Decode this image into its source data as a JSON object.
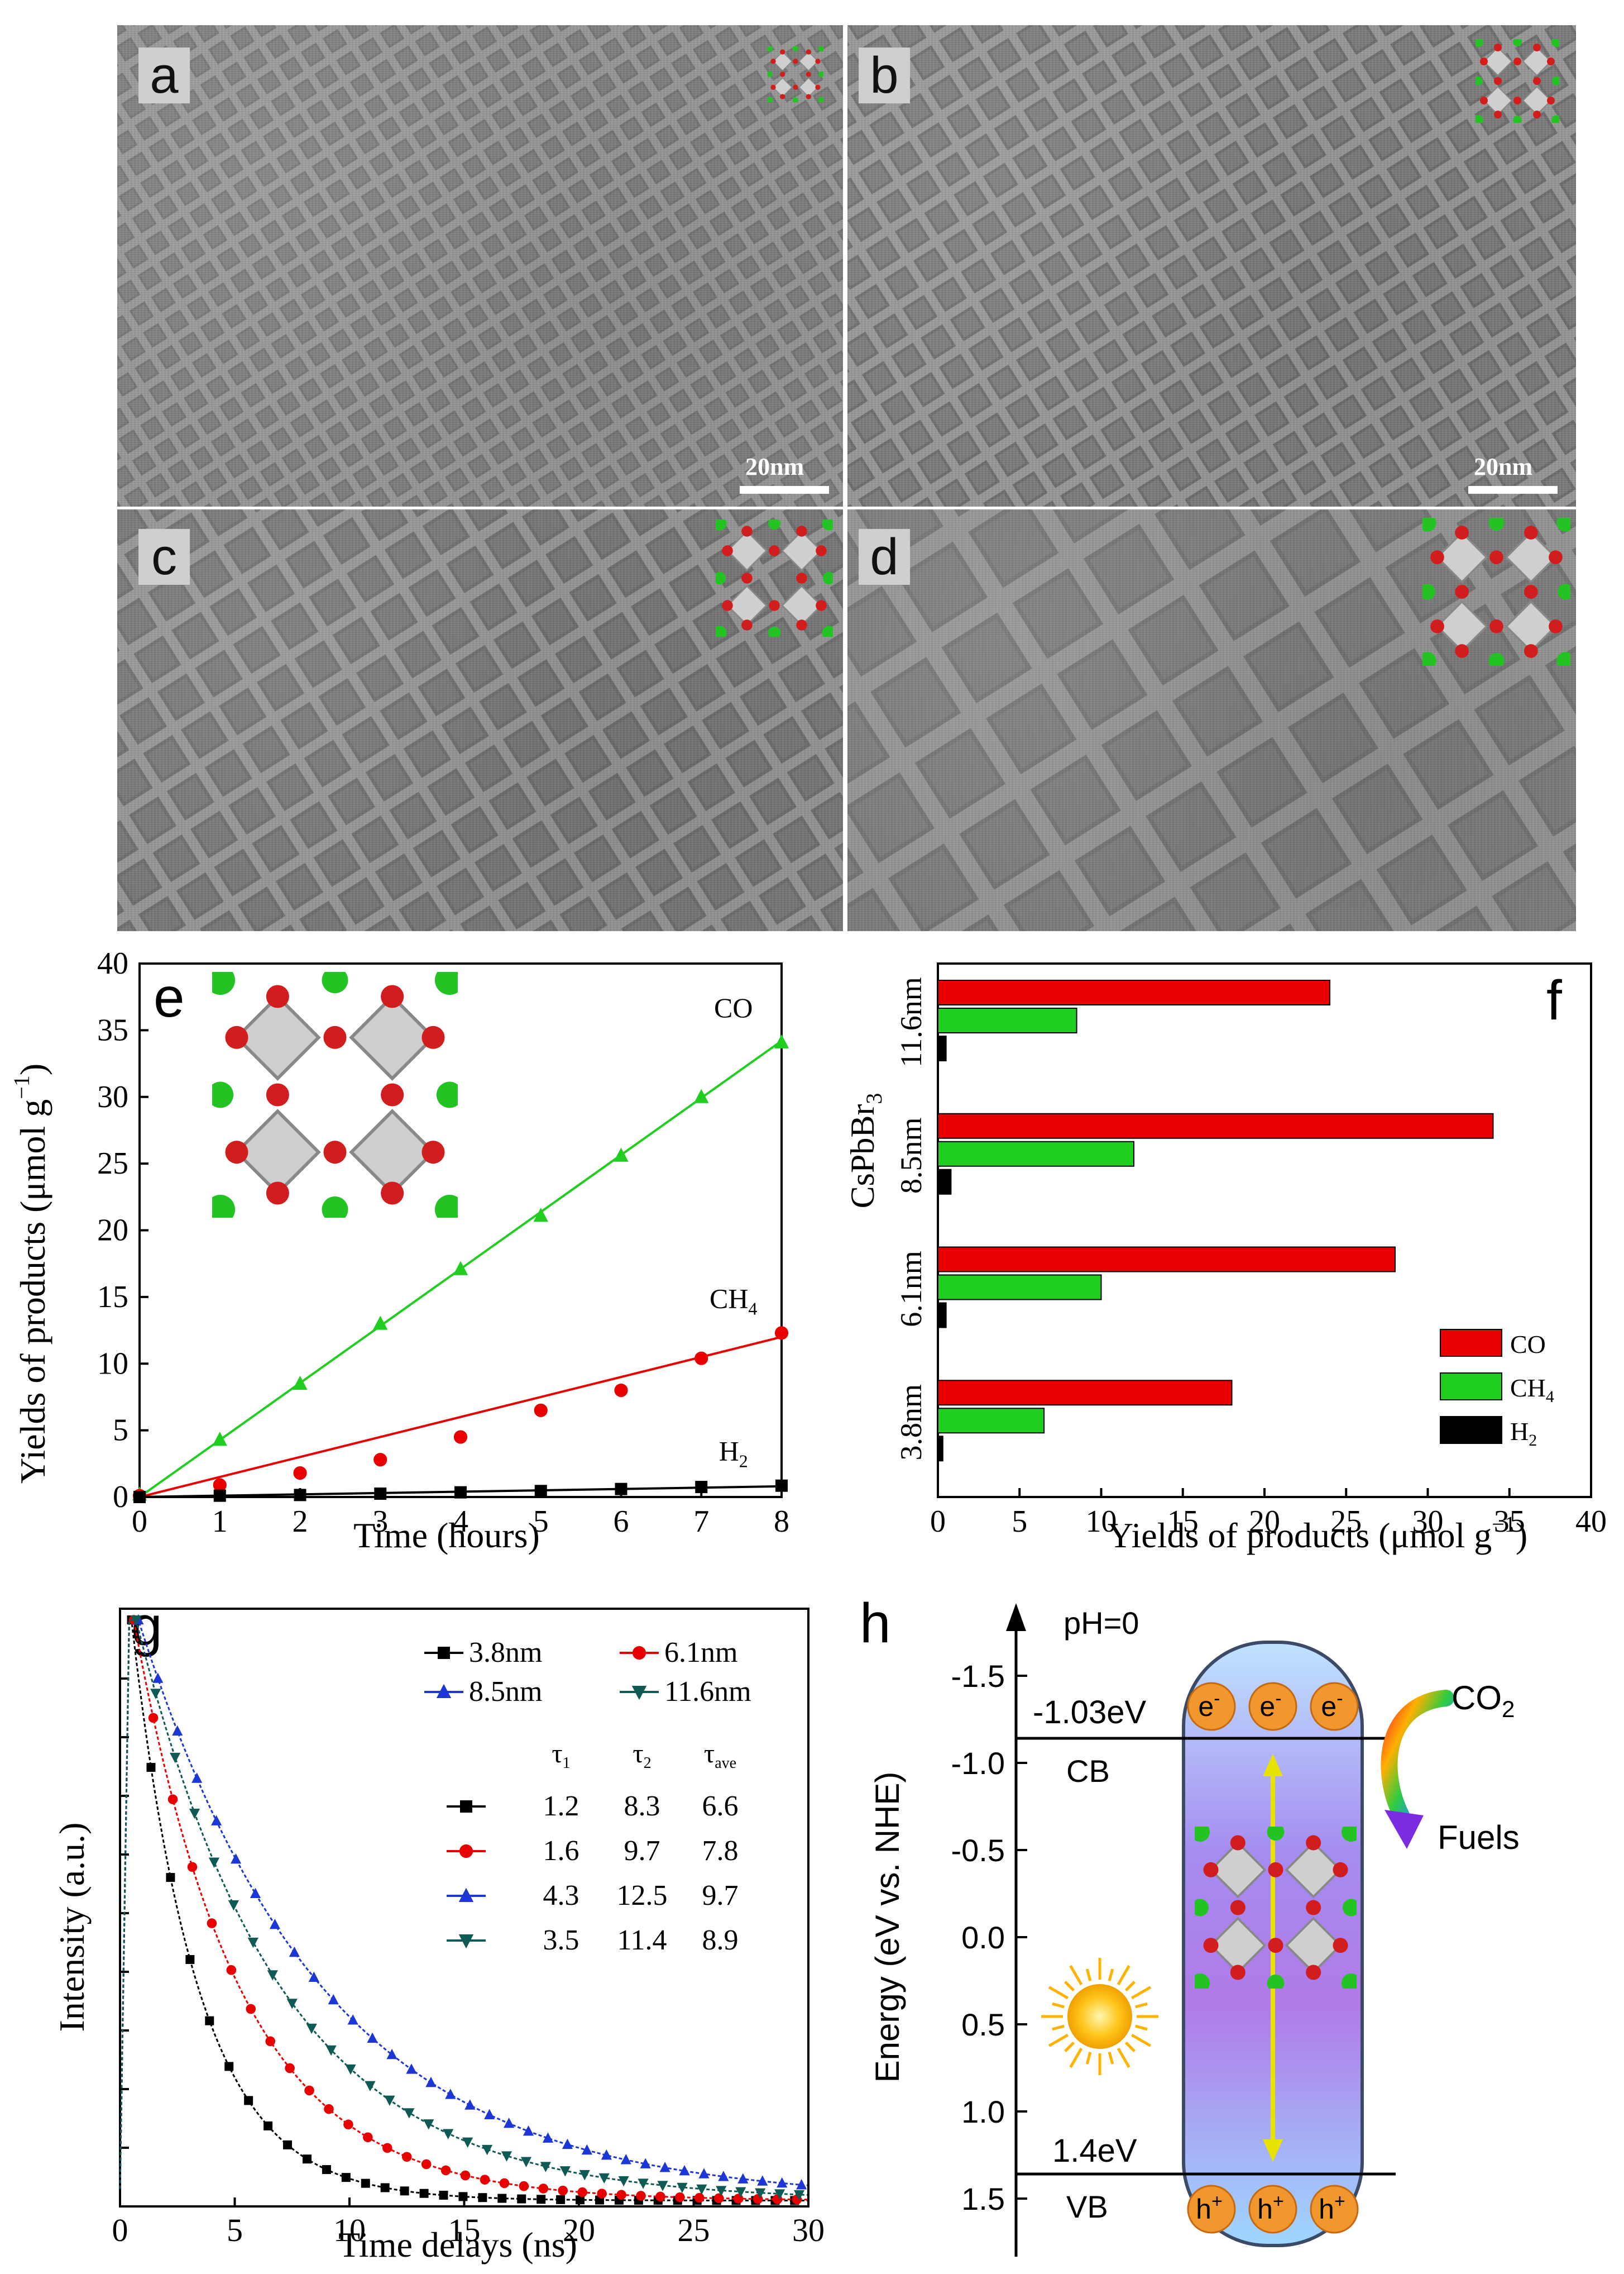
{
  "figure": {
    "panel_letters": {
      "a": "a",
      "b": "b",
      "c": "c",
      "d": "d",
      "e": "e",
      "f": "f",
      "g": "g",
      "h": "h"
    },
    "scale_bar_label": "20nm"
  },
  "colors": {
    "co": "#e80000",
    "ch4": "#1fce1f",
    "h2": "#000000",
    "blue": "#1d36d6",
    "teal": "#0f5a55"
  },
  "chart_data": [
    {
      "id": "e",
      "type": "scatter",
      "xlabel": "Time (hours)",
      "ylabel_main": "Yields of products (μmol g",
      "ylabel_sup": "−1",
      "ylabel_end": ")",
      "xlim": [
        0,
        8
      ],
      "ylim": [
        0,
        40
      ],
      "xticks": [
        "0",
        "1",
        "2",
        "3",
        "4",
        "5",
        "6",
        "7",
        "8"
      ],
      "yticks": [
        "0",
        "5",
        "10",
        "15",
        "20",
        "25",
        "30",
        "35",
        "40"
      ],
      "x": [
        0,
        1,
        2,
        3,
        4,
        5,
        6,
        7,
        8
      ],
      "series": [
        {
          "name": "CO",
          "label": "CO",
          "color": "#1fce1f",
          "marker": "triangle",
          "values": [
            0.2,
            4.3,
            8.5,
            13.0,
            17.1,
            21.1,
            25.6,
            30.0,
            34.1
          ],
          "fit": [
            0,
            34.2
          ]
        },
        {
          "name": "CH4",
          "label": "CH",
          "sub": "4",
          "color": "#e80000",
          "marker": "circle",
          "values": [
            0.1,
            0.9,
            1.8,
            2.8,
            4.5,
            6.5,
            8.0,
            10.4,
            12.3
          ],
          "fit": [
            0,
            12.0
          ]
        },
        {
          "name": "H2",
          "label": "H",
          "sub": "2",
          "color": "#000000",
          "marker": "square",
          "values": [
            0.0,
            0.1,
            0.15,
            0.25,
            0.35,
            0.45,
            0.6,
            0.75,
            0.85
          ],
          "fit": [
            0,
            0.8
          ]
        }
      ]
    },
    {
      "id": "f",
      "type": "bar",
      "orientation": "horizontal",
      "xlabel_main": "Yields of products (μmol g",
      "xlabel_sup": "−1",
      "xlabel_end": ")",
      "ylabel_main": "CsPbBr",
      "ylabel_sub": "3",
      "xlim": [
        0,
        40
      ],
      "xticks": [
        "0",
        "5",
        "10",
        "15",
        "20",
        "25",
        "30",
        "35",
        "40"
      ],
      "categories": [
        "3.8nm",
        "6.1nm",
        "8.5nm",
        "11.6nm"
      ],
      "series": [
        {
          "name": "CO",
          "label": "CO",
          "color": "#e80000",
          "values": [
            18,
            28,
            34,
            24
          ]
        },
        {
          "name": "CH4",
          "label": "CH",
          "sub": "4",
          "color": "#1fce1f",
          "values": [
            6.5,
            10,
            12,
            8.5
          ]
        },
        {
          "name": "H2",
          "label": "H",
          "sub": "2",
          "color": "#000000",
          "values": [
            0.3,
            0.5,
            0.8,
            0.5
          ]
        }
      ]
    },
    {
      "id": "g",
      "type": "line",
      "xlabel": "Time delays (ns)",
      "ylabel": "Intensity (a.u.)",
      "xlim": [
        0,
        30
      ],
      "ylim": [
        0,
        1.0
      ],
      "xticks": [
        "0",
        "5",
        "10",
        "15",
        "20",
        "25",
        "30"
      ],
      "legend_top": [
        {
          "label": "3.8nm",
          "color": "#000000",
          "marker": "square"
        },
        {
          "label": "6.1nm",
          "color": "#e80000",
          "marker": "circle"
        },
        {
          "label": "8.5nm",
          "color": "#1d36d6",
          "marker": "triangle"
        },
        {
          "label": "11.6nm",
          "color": "#0f5a55",
          "marker": "tridown"
        }
      ],
      "table_headers": {
        "t1": "τ",
        "t1_sub": "1",
        "t2": "τ",
        "t2_sub": "2",
        "tave": "τ",
        "tave_sub": "ave"
      },
      "table_rows": [
        {
          "t1": "1.2",
          "t2": "8.3",
          "tave": "6.6"
        },
        {
          "t1": "1.6",
          "t2": "9.7",
          "tave": "7.8"
        },
        {
          "t1": "4.3",
          "t2": "12.5",
          "tave": "9.7"
        },
        {
          "t1": "3.5",
          "t2": "11.4",
          "tave": "8.9"
        }
      ],
      "series": [
        {
          "name": "3.8nm",
          "color": "#000000",
          "marker": "square",
          "peak": 0.5,
          "tau": 2.9
        },
        {
          "name": "6.1nm",
          "color": "#e80000",
          "marker": "circle",
          "peak": 0.6,
          "tau": 4.6
        },
        {
          "name": "8.5nm",
          "color": "#1d36d6",
          "marker": "triangle",
          "peak": 0.8,
          "tau": 8.0
        },
        {
          "name": "11.6nm",
          "color": "#0f5a55",
          "marker": "tridown",
          "peak": 0.7,
          "tau": 6.3
        }
      ]
    },
    {
      "id": "h",
      "type": "diagram",
      "ylabel": "Energy (eV vs. NHE)",
      "yticks": [
        "-1.5",
        "-1.0",
        "-0.5",
        "0.0",
        "0.5",
        "1.0",
        "1.5"
      ],
      "ph_label": "pH=0",
      "cb_value": "-1.03eV",
      "vb_value": "1.4eV",
      "cb_label": "CB",
      "vb_label": "VB",
      "electron": "e",
      "electron_sup": "-",
      "hole": "h",
      "hole_sup": "+",
      "co2": "CO",
      "co2_sub": "2",
      "fuels": "Fuels"
    }
  ]
}
